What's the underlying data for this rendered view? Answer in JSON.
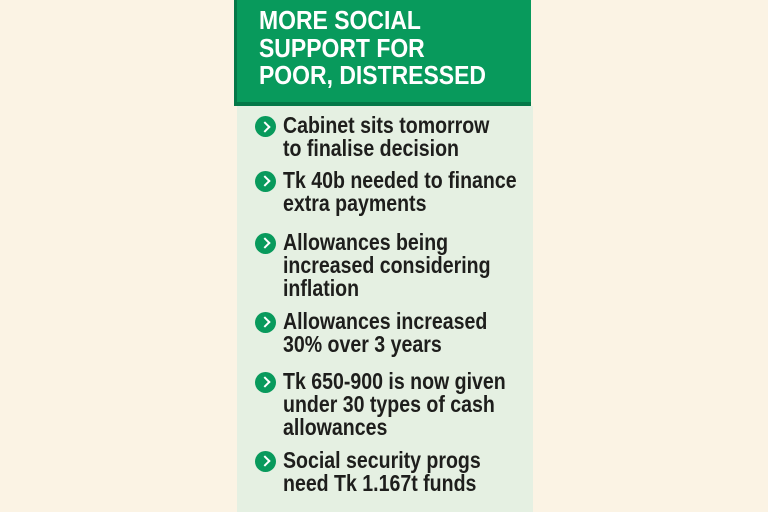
{
  "colors": {
    "page_cream": "#fbf3e4",
    "header_green": "#089a5c",
    "header_edge": "#047848",
    "body_mint": "#e5f0e2",
    "bullet_green": "#089a5c",
    "title_text": "#ffffff",
    "text": "#1e1e1c"
  },
  "title_lines": [
    "MORE SOCIAL",
    "SUPPORT FOR",
    "POOR, DISTRESSED"
  ],
  "bullets": [
    {
      "lines": [
        "Cabinet sits tomorrow",
        "to finalise decision"
      ]
    },
    {
      "lines": [
        "Tk 40b needed to finance",
        "extra payments"
      ]
    },
    {
      "lines": [
        "Allowances being",
        "increased considering",
        "inflation"
      ]
    },
    {
      "lines": [
        "Allowances increased",
        "30% over 3 years"
      ]
    },
    {
      "lines": [
        "Tk 650-900 is now given",
        "under 30 types of cash",
        "allowances"
      ]
    },
    {
      "lines": [
        "Social security progs",
        "need Tk 1.167t funds"
      ]
    }
  ]
}
